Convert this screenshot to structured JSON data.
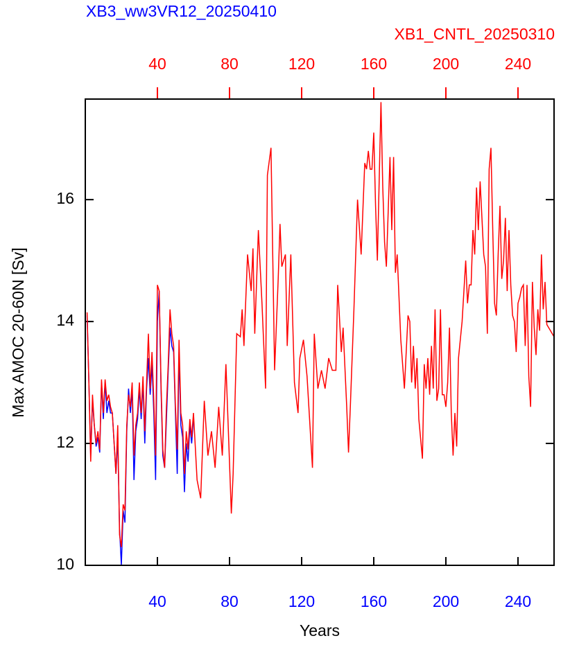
{
  "chart_data": {
    "type": "line",
    "title": "XB3_ww3VR12_20250410",
    "title2": "XB1_CNTL_20250310",
    "xlabel": "Years",
    "ylabel": "Max AMOC 20-60N [Sv]",
    "xlim": [
      0,
      260
    ],
    "xticks": [
      40,
      80,
      120,
      160,
      200,
      240
    ],
    "x2lim": [
      0,
      260
    ],
    "x2ticks": [
      40,
      80,
      120,
      160,
      200,
      240
    ],
    "ylim": [
      10,
      17.65
    ],
    "yticks": [
      10,
      12,
      14,
      16
    ],
    "series": [
      {
        "name": "XB3_ww3VR12_20250410",
        "color": "#0000ff",
        "x": [
          1,
          2,
          3,
          4,
          5,
          6,
          7,
          8,
          9,
          10,
          11,
          12,
          13,
          14,
          15,
          16,
          17,
          18,
          19,
          20,
          21,
          22,
          23,
          24,
          25,
          26,
          27,
          28,
          29,
          30,
          31,
          32,
          33,
          34,
          35,
          36,
          37,
          38,
          39,
          40,
          41,
          42,
          43,
          44,
          45,
          46,
          47,
          48,
          49,
          50,
          51,
          52,
          53,
          54,
          55,
          56,
          57,
          58,
          59,
          60
        ],
        "values": [
          14.1,
          13.0,
          11.8,
          12.7,
          12.3,
          11.95,
          12.1,
          11.85,
          13.0,
          12.4,
          13.0,
          12.5,
          12.7,
          12.5,
          12.5,
          12.0,
          11.5,
          12.1,
          10.6,
          10.0,
          10.9,
          10.7,
          12.2,
          12.9,
          12.5,
          12.9,
          11.4,
          12.2,
          12.4,
          12.9,
          12.4,
          13.0,
          12.0,
          12.9,
          13.4,
          12.8,
          13.3,
          12.5,
          11.4,
          14.0,
          14.5,
          12.9,
          11.8,
          11.6,
          12.4,
          13.2,
          13.9,
          13.6,
          13.5,
          12.5,
          11.5,
          13.5,
          12.3,
          12.1,
          11.2,
          12.0,
          11.7,
          12.3,
          12.0,
          12.4
        ]
      },
      {
        "name": "XB1_CNTL_20250310",
        "color": "#ff0000",
        "x": [
          1,
          2,
          3,
          4,
          5,
          6,
          7,
          8,
          9,
          10,
          11,
          12,
          13,
          14,
          15,
          16,
          17,
          18,
          19,
          20,
          21,
          22,
          23,
          24,
          25,
          26,
          27,
          28,
          29,
          30,
          31,
          32,
          33,
          34,
          35,
          36,
          37,
          38,
          39,
          40,
          41,
          42,
          43,
          44,
          45,
          46,
          47,
          48,
          49,
          50,
          51,
          52,
          53,
          54,
          55,
          56,
          57,
          58,
          59,
          60,
          62,
          64,
          66,
          68,
          70,
          72,
          74,
          76,
          78,
          79,
          81,
          82,
          84,
          86,
          87,
          88,
          90,
          92,
          93,
          94,
          96,
          98,
          100,
          101,
          103,
          105,
          107,
          108,
          109,
          111,
          112,
          114,
          116,
          118,
          119,
          121,
          123,
          125,
          126,
          127,
          129,
          131,
          133,
          135,
          137,
          139,
          140,
          142,
          143,
          145,
          146,
          147,
          149,
          150,
          151,
          153,
          155,
          156,
          157,
          158,
          159,
          160,
          161,
          162,
          164,
          165,
          166,
          167,
          169,
          170,
          171,
          172,
          173,
          175,
          177,
          179,
          180,
          181,
          182,
          183,
          184,
          185,
          187,
          188,
          189,
          190,
          191,
          192,
          193,
          194,
          195,
          196,
          197,
          198,
          199,
          200,
          201,
          202,
          203,
          204,
          205,
          206,
          207,
          209,
          211,
          212,
          213,
          214,
          215,
          216,
          217,
          218,
          219,
          221,
          222,
          223,
          224,
          225,
          226,
          227,
          228,
          229,
          230,
          231,
          232,
          233,
          234,
          235,
          236,
          237,
          238,
          239,
          240,
          241,
          242,
          243,
          244,
          245,
          246,
          247,
          248,
          249,
          250,
          251,
          252,
          253,
          254,
          255,
          256,
          258,
          260
        ],
        "values": [
          14.15,
          13.0,
          11.7,
          12.8,
          12.3,
          12.0,
          12.2,
          11.9,
          13.05,
          12.5,
          13.05,
          12.7,
          12.8,
          12.6,
          12.5,
          12.0,
          11.5,
          12.3,
          10.5,
          10.3,
          11.0,
          10.9,
          12.3,
          12.8,
          12.6,
          13.0,
          11.8,
          12.3,
          12.5,
          13.0,
          12.5,
          13.1,
          12.2,
          13.0,
          13.8,
          12.9,
          13.5,
          12.7,
          11.8,
          14.6,
          14.5,
          13.0,
          11.9,
          11.6,
          12.6,
          13.3,
          14.2,
          13.8,
          13.6,
          12.6,
          11.9,
          13.7,
          12.5,
          12.3,
          11.5,
          12.2,
          11.9,
          12.4,
          12.1,
          12.5,
          11.4,
          11.1,
          12.7,
          11.8,
          12.2,
          11.6,
          12.6,
          11.8,
          13.3,
          12.5,
          10.85,
          11.5,
          13.8,
          13.75,
          14.2,
          13.6,
          15.1,
          14.5,
          15.2,
          13.8,
          15.5,
          14.3,
          12.9,
          16.4,
          16.85,
          13.2,
          14.7,
          15.6,
          14.9,
          15.1,
          13.6,
          15.1,
          13.0,
          12.5,
          13.4,
          13.7,
          13.1,
          12.1,
          11.6,
          13.8,
          12.9,
          13.2,
          12.9,
          13.4,
          13.2,
          13.2,
          14.6,
          13.5,
          13.9,
          12.6,
          11.85,
          12.6,
          14.2,
          15.1,
          16.0,
          15.1,
          16.6,
          16.5,
          16.8,
          16.5,
          16.5,
          17.1,
          15.9,
          15.0,
          17.6,
          16.2,
          15.3,
          14.9,
          16.7,
          15.5,
          16.7,
          14.8,
          15.1,
          13.7,
          12.9,
          14.1,
          14.0,
          13.0,
          13.6,
          12.9,
          13.4,
          12.4,
          11.75,
          13.3,
          12.9,
          13.4,
          12.8,
          13.6,
          12.9,
          14.2,
          12.7,
          12.9,
          14.2,
          12.8,
          12.8,
          12.6,
          13.0,
          13.9,
          12.5,
          11.8,
          12.5,
          11.95,
          13.4,
          14.0,
          15.0,
          14.3,
          14.6,
          14.6,
          15.5,
          15.1,
          16.2,
          15.5,
          16.3,
          15.1,
          14.9,
          13.8,
          16.5,
          16.85,
          15.5,
          14.3,
          14.1,
          15.1,
          15.9,
          14.7,
          15.0,
          15.7,
          14.5,
          15.5,
          14.6,
          14.1,
          14.0,
          13.5,
          14.3,
          14.4,
          14.55,
          14.6,
          13.6,
          14.6,
          13.1,
          12.6,
          14.65,
          13.9,
          13.45,
          14.2,
          13.85,
          15.1,
          14.2,
          14.65,
          13.95,
          13.85,
          13.75
        ]
      }
    ]
  }
}
